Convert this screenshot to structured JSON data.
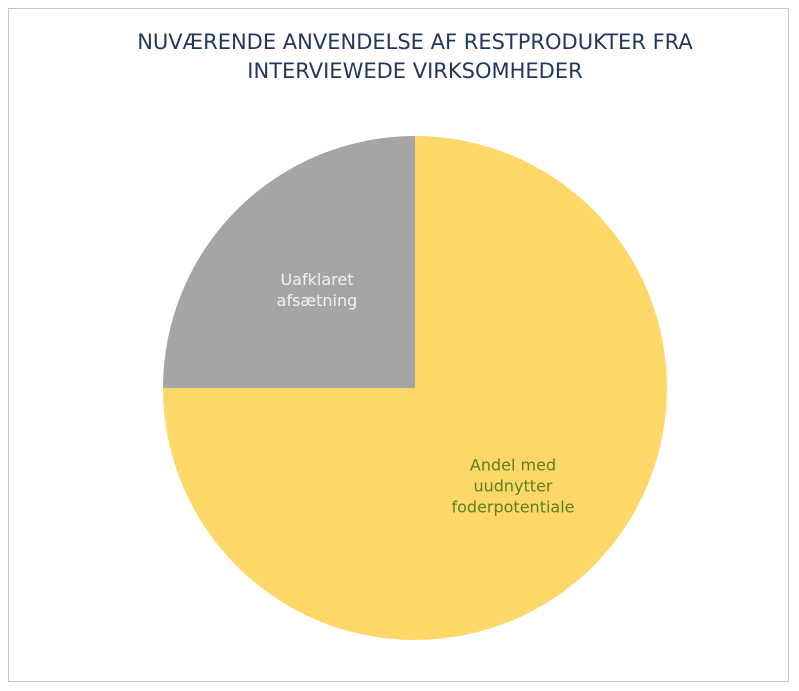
{
  "chart_data": {
    "type": "pie",
    "title": "NUVÆRENDE ANVENDELSE AF RESTPRODUKTER FRA INTERVIEWEDE VIRKSOMHEDER",
    "categories": [
      "Andel med uudnytter foderpotentiale",
      "Uafklaret afsætning"
    ],
    "values": [
      75,
      25
    ],
    "colors": [
      "#fdd868",
      "#a5a5a5"
    ],
    "label_colors": [
      "#5b7f1f",
      "#eef2f8"
    ]
  }
}
